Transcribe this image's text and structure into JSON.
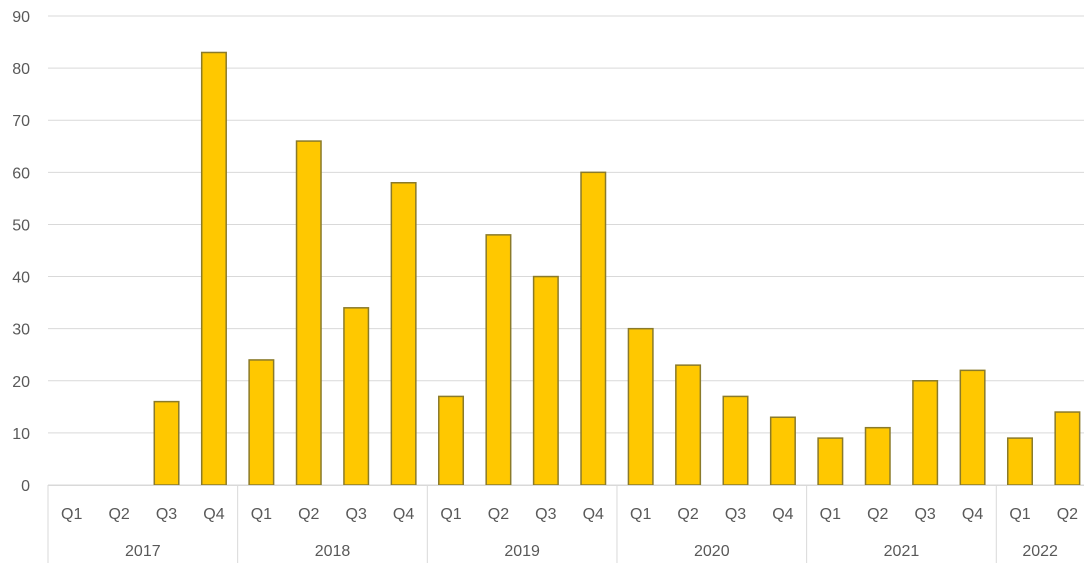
{
  "chart_data": {
    "type": "bar",
    "categories": [
      [
        "Q1",
        "2017"
      ],
      [
        "Q2",
        "2017"
      ],
      [
        "Q3",
        "2017"
      ],
      [
        "Q4",
        "2017"
      ],
      [
        "Q1",
        "2018"
      ],
      [
        "Q2",
        "2018"
      ],
      [
        "Q3",
        "2018"
      ],
      [
        "Q4",
        "2018"
      ],
      [
        "Q1",
        "2019"
      ],
      [
        "Q2",
        "2019"
      ],
      [
        "Q3",
        "2019"
      ],
      [
        "Q4",
        "2019"
      ],
      [
        "Q1",
        "2020"
      ],
      [
        "Q2",
        "2020"
      ],
      [
        "Q3",
        "2020"
      ],
      [
        "Q4",
        "2020"
      ],
      [
        "Q1",
        "2021"
      ],
      [
        "Q2",
        "2021"
      ],
      [
        "Q3",
        "2021"
      ],
      [
        "Q4",
        "2021"
      ],
      [
        "Q1",
        "2022"
      ],
      [
        "Q2",
        "2022"
      ]
    ],
    "quarters": [
      "Q1",
      "Q2",
      "Q3",
      "Q4",
      "Q1",
      "Q2",
      "Q3",
      "Q4",
      "Q1",
      "Q2",
      "Q3",
      "Q4",
      "Q1",
      "Q2",
      "Q3",
      "Q4",
      "Q1",
      "Q2",
      "Q3",
      "Q4",
      "Q1",
      "Q2"
    ],
    "years": [
      "2017",
      "2018",
      "2019",
      "2020",
      "2021",
      "2022"
    ],
    "year_quarter_counts": [
      4,
      4,
      4,
      4,
      4,
      2
    ],
    "values": [
      0,
      0,
      16,
      83,
      24,
      66,
      34,
      58,
      17,
      48,
      40,
      60,
      30,
      23,
      17,
      13,
      9,
      11,
      20,
      22,
      9,
      14
    ],
    "y_ticks": [
      "0",
      "10",
      "20",
      "30",
      "40",
      "50",
      "60",
      "70",
      "80",
      "90"
    ],
    "ylim": [
      0,
      90
    ],
    "title": "",
    "xlabel": "",
    "ylabel": "",
    "grid": true,
    "legend": "none",
    "colors": {
      "bar_fill": "#ffc800",
      "bar_stroke": "#8a7a2a",
      "grid": "#d9d9d9",
      "axis": "#d9d9d9",
      "text": "#595959"
    }
  }
}
